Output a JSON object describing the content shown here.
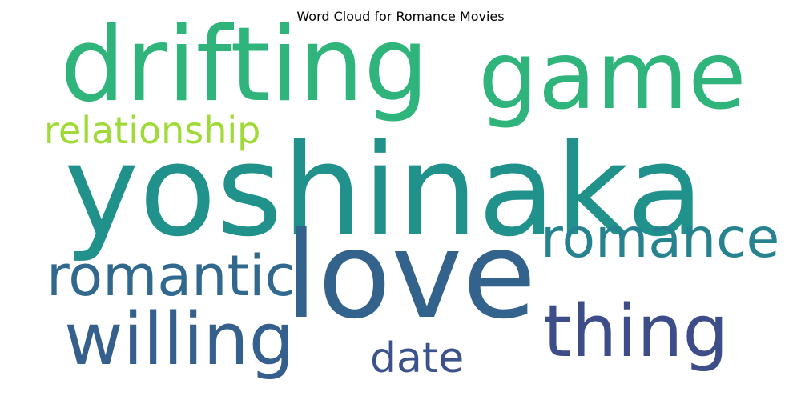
{
  "chart_data": {
    "type": "wordcloud",
    "title": "Word Cloud for Romance Movies",
    "words": [
      {
        "text": "yoshinaka",
        "weight": 1.0,
        "color": "#21918c"
      },
      {
        "text": "love",
        "weight": 0.92,
        "color": "#33638d"
      },
      {
        "text": "drifting",
        "weight": 0.74,
        "color": "#2fb47c"
      },
      {
        "text": "game",
        "weight": 0.68,
        "color": "#2fb47c"
      },
      {
        "text": "thing",
        "weight": 0.58,
        "color": "#3d4d8a"
      },
      {
        "text": "willing",
        "weight": 0.56,
        "color": "#355f8d"
      },
      {
        "text": "romantic",
        "weight": 0.48,
        "color": "#31688e"
      },
      {
        "text": "romance",
        "weight": 0.46,
        "color": "#26828e"
      },
      {
        "text": "relationship",
        "weight": 0.36,
        "color": "#a0da39"
      },
      {
        "text": "date",
        "weight": 0.34,
        "color": "#3b528b"
      }
    ]
  }
}
